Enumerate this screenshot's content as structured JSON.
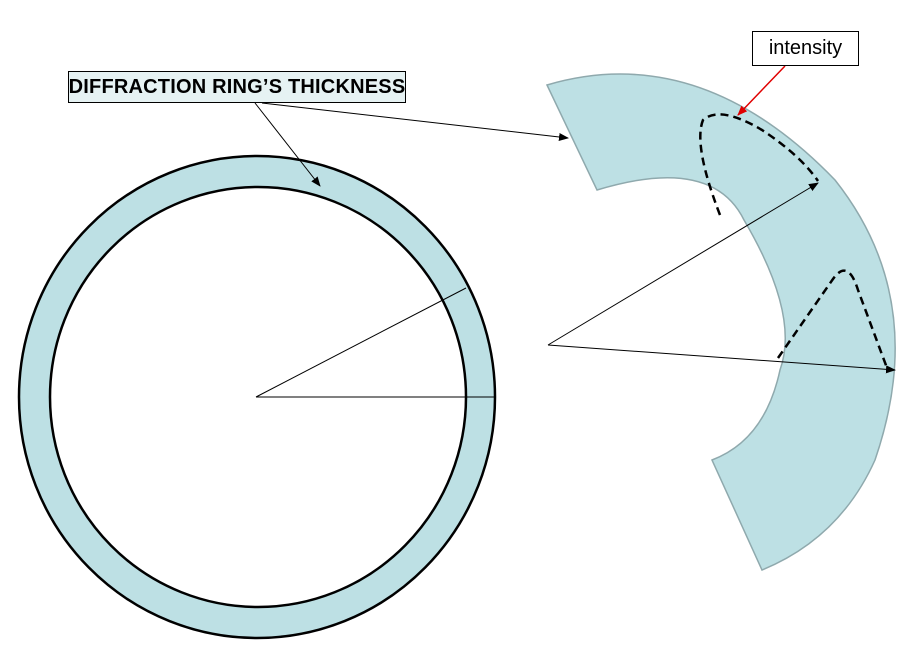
{
  "labels": {
    "ring_thickness": "DIFFRACTION RING’S THICKNESS",
    "intensity": "intensity"
  },
  "colors": {
    "ring_fill": "#bde0e4",
    "label_fill": "#e6f2f3",
    "outline": "#000000",
    "sector_edge": "#8fa9ad",
    "intensity_pointer": "#e00000"
  }
}
